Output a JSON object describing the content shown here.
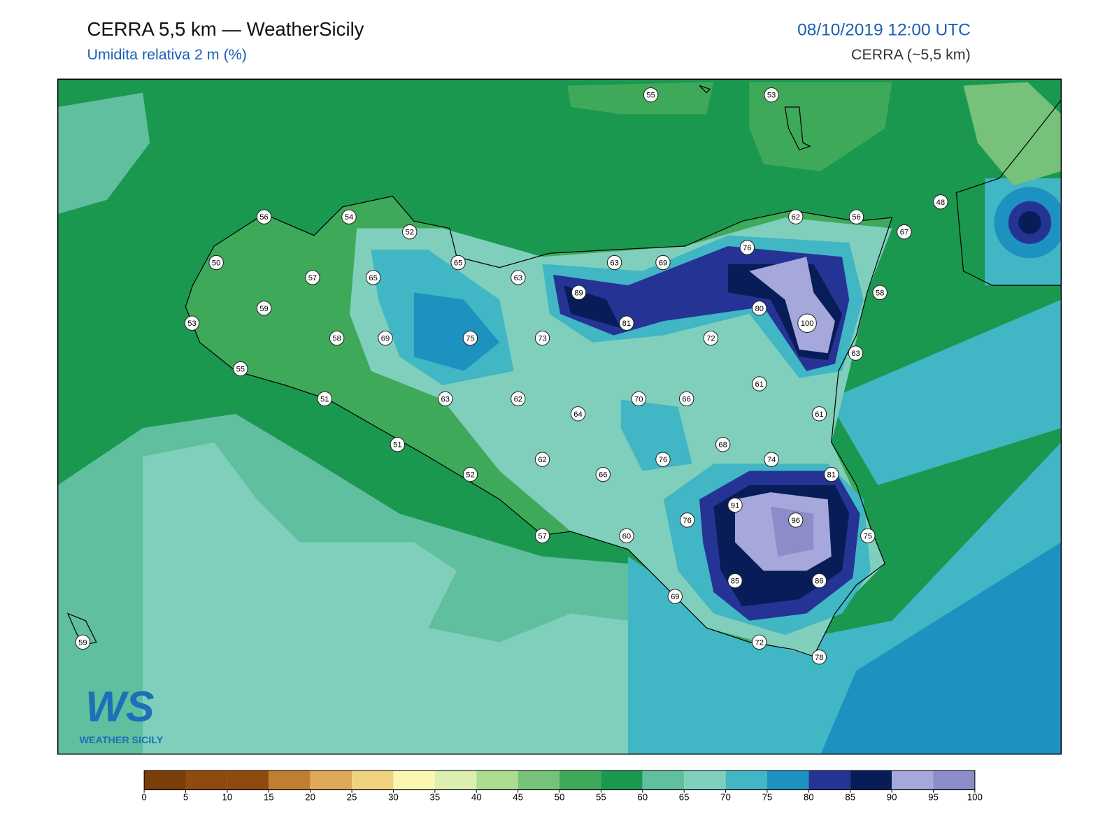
{
  "header": {
    "title": "CERRA 5,5 km — WeatherSicily",
    "subtitle": "Umidita relativa 2 m (%)",
    "datetime": "08/10/2019 12:00 UTC",
    "model": "CERRA (~5,5 km)"
  },
  "map": {
    "stations": [
      55,
      53,
      56,
      54,
      52,
      62,
      56,
      48,
      67,
      50,
      57,
      65,
      65,
      63,
      63,
      69,
      76,
      58,
      59,
      89,
      81,
      80,
      100,
      53,
      58,
      69,
      75,
      73,
      72,
      63,
      55,
      61,
      51,
      63,
      62,
      70,
      66,
      64,
      61,
      68,
      51,
      74,
      76,
      62,
      81,
      52,
      66,
      91,
      96,
      76,
      75,
      57,
      60,
      85,
      86,
      69,
      59,
      72,
      78
    ]
  },
  "colorbar": {
    "ticks": [
      0,
      5,
      10,
      15,
      20,
      25,
      30,
      35,
      40,
      45,
      50,
      55,
      60,
      65,
      70,
      75,
      80,
      85,
      90,
      95,
      100
    ],
    "colors": [
      "#7a3e09",
      "#8e4b10",
      "#8e4b10",
      "#c07f30",
      "#dfa95a",
      "#f0d27e",
      "#f9f7b0",
      "#dcefb0",
      "#abdc90",
      "#76c27a",
      "#3fa95a",
      "#1a9850",
      "#5fbf9f",
      "#80cfbc",
      "#41b6c4",
      "#1d91c0",
      "#253494",
      "#081d58",
      "#a6a8dc",
      "#8c8cc8"
    ]
  },
  "logo": {
    "mark": "WS",
    "text": "WEATHER SICILY"
  }
}
